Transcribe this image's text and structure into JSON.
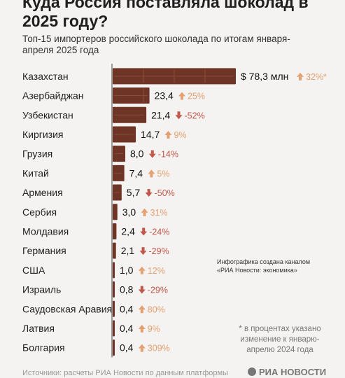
{
  "page": {
    "title": "Куда Россия поставляла шоколад в 2025 году?",
    "subtitle": "Топ-15 импортеров российского шоколада по итогам января-апреля 2025 года",
    "note": "Инфографика создана каналом «РИА Новости: экономика»",
    "footnote": "* в процентах указано изменение к январю-апрелю 2024 года",
    "sources": "Источники: расчеты РИА Новости по данным платформы",
    "logo": "РИА НОВОСТИ"
  },
  "colors": {
    "bar": "#6e3425",
    "bar_light": "#8a4c39",
    "up": "#e3a070",
    "down": "#c0574a"
  },
  "chart_data": {
    "type": "bar",
    "orientation": "horizontal",
    "unit_prefix": "$ ",
    "unit_suffix": " млн",
    "categories": [
      "Казахстан",
      "Азербайджан",
      "Узбекистан",
      "Киргизия",
      "Грузия",
      "Китай",
      "Армения",
      "Сербия",
      "Молдавия",
      "Германия",
      "США",
      "Израиль",
      "Саудовская Аравия",
      "Латвия",
      "Болгария"
    ],
    "series": [
      {
        "values": [
          78.3,
          23.4,
          21.4,
          14.7,
          8.0,
          7.4,
          5.7,
          3.0,
          2.4,
          2.1,
          1.0,
          0.8,
          0.4,
          0.4,
          0.4
        ],
        "value_labels": [
          "78,3",
          "23,4",
          "21,4",
          "14,7",
          "8,0",
          "7,4",
          "5,7",
          "3,0",
          "2,4",
          "2,1",
          "1,0",
          "0,8",
          "0,4",
          "0,4",
          "0,4"
        ],
        "change_labels": [
          "32%*",
          "25%",
          "-52%",
          "9%",
          "-14%",
          "5%",
          "-50%",
          "31%",
          "-24%",
          "-29%",
          "12%",
          "-29%",
          "80%",
          "9%",
          "309%"
        ],
        "change_direction": [
          "up",
          "up",
          "down",
          "up",
          "down",
          "up",
          "down",
          "up",
          "down",
          "down",
          "up",
          "down",
          "up",
          "up",
          "up"
        ]
      }
    ],
    "xlim": [
      0,
      78.3
    ]
  }
}
